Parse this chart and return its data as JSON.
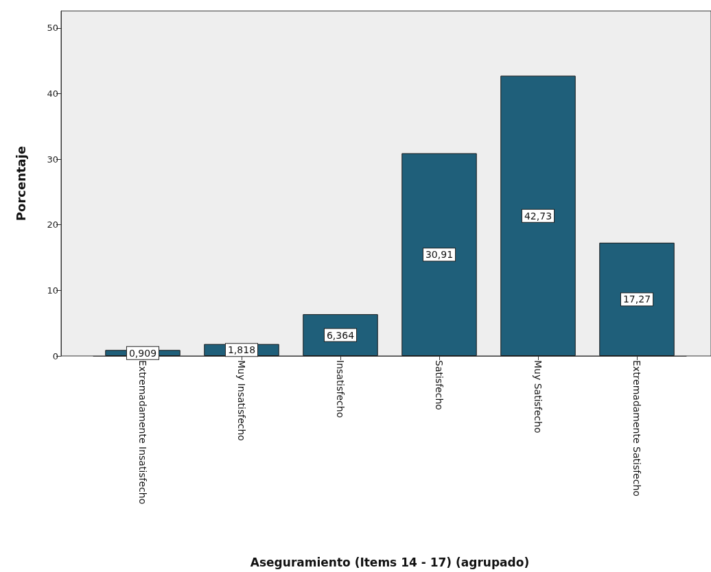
{
  "chart_data": {
    "type": "bar",
    "xlabel": "Aseguramiento (Items 14 - 17) (agrupado)",
    "ylabel": "Porcentaje",
    "categories": [
      "Extremadamente Insatisfecho",
      "Muy Insatisfecho",
      "Insatisfecho",
      "Satisfecho",
      "Muy Satisfecho",
      "Extremadamente Satisfecho"
    ],
    "values": [
      0.909,
      1.818,
      6.364,
      30.91,
      42.73,
      17.27
    ],
    "value_labels": [
      "0,909",
      "1,818",
      "6,364",
      "30,91",
      "42,73",
      "17,27"
    ],
    "color": "#1f5f7a",
    "ylim": [
      0,
      52.6
    ],
    "yticks": [
      0,
      10,
      20,
      30,
      40,
      50
    ]
  }
}
